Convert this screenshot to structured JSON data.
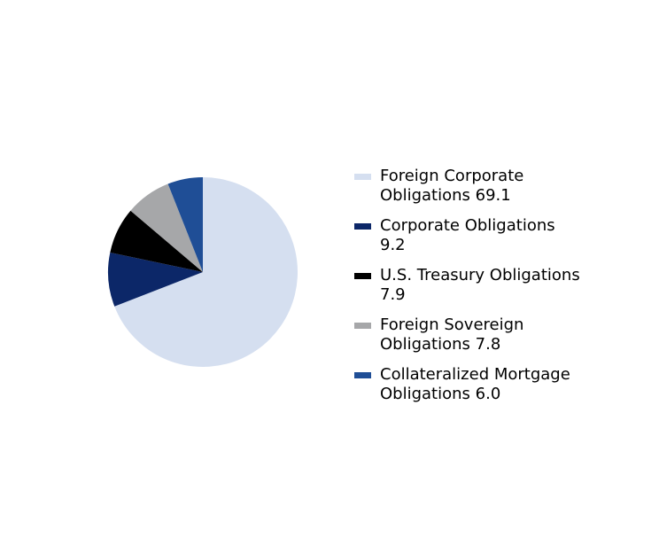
{
  "chart_data": {
    "type": "pie",
    "categories": [
      "Foreign Corporate Obligations",
      "Corporate Obligations",
      "U.S. Treasury Obligations",
      "Foreign Sovereign Obligations",
      "Collateralized Mortgage Obligations"
    ],
    "values": [
      69.1,
      9.2,
      7.9,
      7.8,
      6.0
    ],
    "value_labels": [
      "69.1",
      "9.2",
      "7.9",
      "7.8",
      "6.0"
    ],
    "colors": [
      "#d5dff0",
      "#0c2768",
      "#000000",
      "#a6a7a9",
      "#1f4e96"
    ],
    "legend": "right"
  }
}
